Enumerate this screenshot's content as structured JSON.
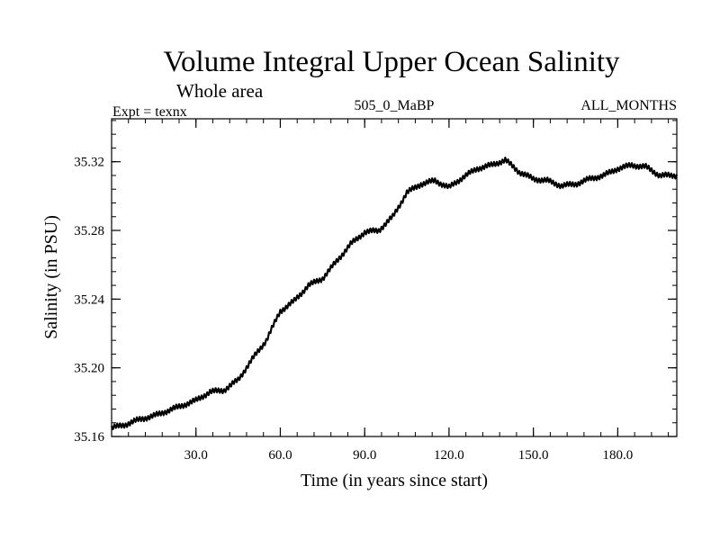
{
  "chart_data": {
    "type": "line",
    "title": "Volume Integral Upper Ocean Salinity",
    "subtitle": "Whole area",
    "experiment_label": "Expt = texnx",
    "run_label": "505_0_MaBP",
    "period_label": "ALL_MONTHS",
    "xlabel": "Time (in years since start)",
    "ylabel": "Salinity (in PSU)",
    "xlim": [
      0,
      201
    ],
    "ylim": [
      35.16,
      35.345
    ],
    "x_ticks": [
      30,
      60,
      90,
      120,
      150,
      180
    ],
    "x_tick_labels": [
      "30.0",
      "60.0",
      "90.0",
      "120.0",
      "150.0",
      "180.0"
    ],
    "y_ticks": [
      35.16,
      35.2,
      35.24,
      35.28,
      35.32
    ],
    "y_tick_labels": [
      "35.16",
      "35.20",
      "35.24",
      "35.28",
      "35.32"
    ],
    "grid": false,
    "series": [
      {
        "name": "salinity",
        "x": [
          0,
          5,
          10,
          15,
          20,
          25,
          30,
          35,
          40,
          45,
          50,
          55,
          60,
          65,
          70,
          75,
          80,
          85,
          90,
          95,
          100,
          105,
          110,
          115,
          120,
          125,
          130,
          135,
          140,
          145,
          150,
          155,
          160,
          165,
          170,
          175,
          180,
          185,
          190,
          195,
          201
        ],
        "values": [
          35.165,
          35.167,
          35.17,
          35.172,
          35.175,
          35.178,
          35.181,
          35.186,
          35.187,
          35.193,
          35.205,
          35.216,
          35.233,
          35.239,
          35.248,
          35.252,
          35.262,
          35.272,
          35.279,
          35.28,
          35.288,
          35.302,
          35.307,
          35.309,
          35.305,
          35.311,
          35.316,
          35.318,
          35.321,
          35.314,
          35.31,
          35.309,
          35.306,
          35.307,
          35.31,
          35.312,
          35.316,
          35.318,
          35.317,
          35.312,
          35.312
        ]
      }
    ]
  }
}
